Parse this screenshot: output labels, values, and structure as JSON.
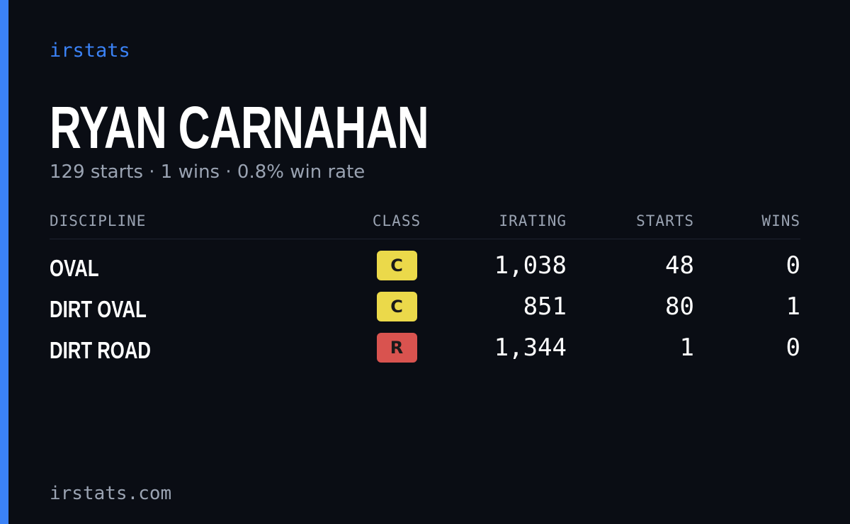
{
  "brand": "irstats",
  "driver": {
    "name": "RYAN CARNAHAN",
    "summary": "129 starts · 1 wins · 0.8% win rate"
  },
  "table": {
    "headers": [
      "DISCIPLINE",
      "CLASS",
      "IRATING",
      "STARTS",
      "WINS"
    ],
    "rows": [
      {
        "discipline": "OVAL",
        "class": "C",
        "class_color": "#ebd94a",
        "irating": "1,038",
        "starts": "48",
        "wins": "0"
      },
      {
        "discipline": "DIRT OVAL",
        "class": "C",
        "class_color": "#ebd94a",
        "irating": "851",
        "starts": "80",
        "wins": "1"
      },
      {
        "discipline": "DIRT ROAD",
        "class": "R",
        "class_color": "#d9534f",
        "irating": "1,344",
        "starts": "1",
        "wins": "0"
      }
    ]
  },
  "footer": "irstats.com"
}
